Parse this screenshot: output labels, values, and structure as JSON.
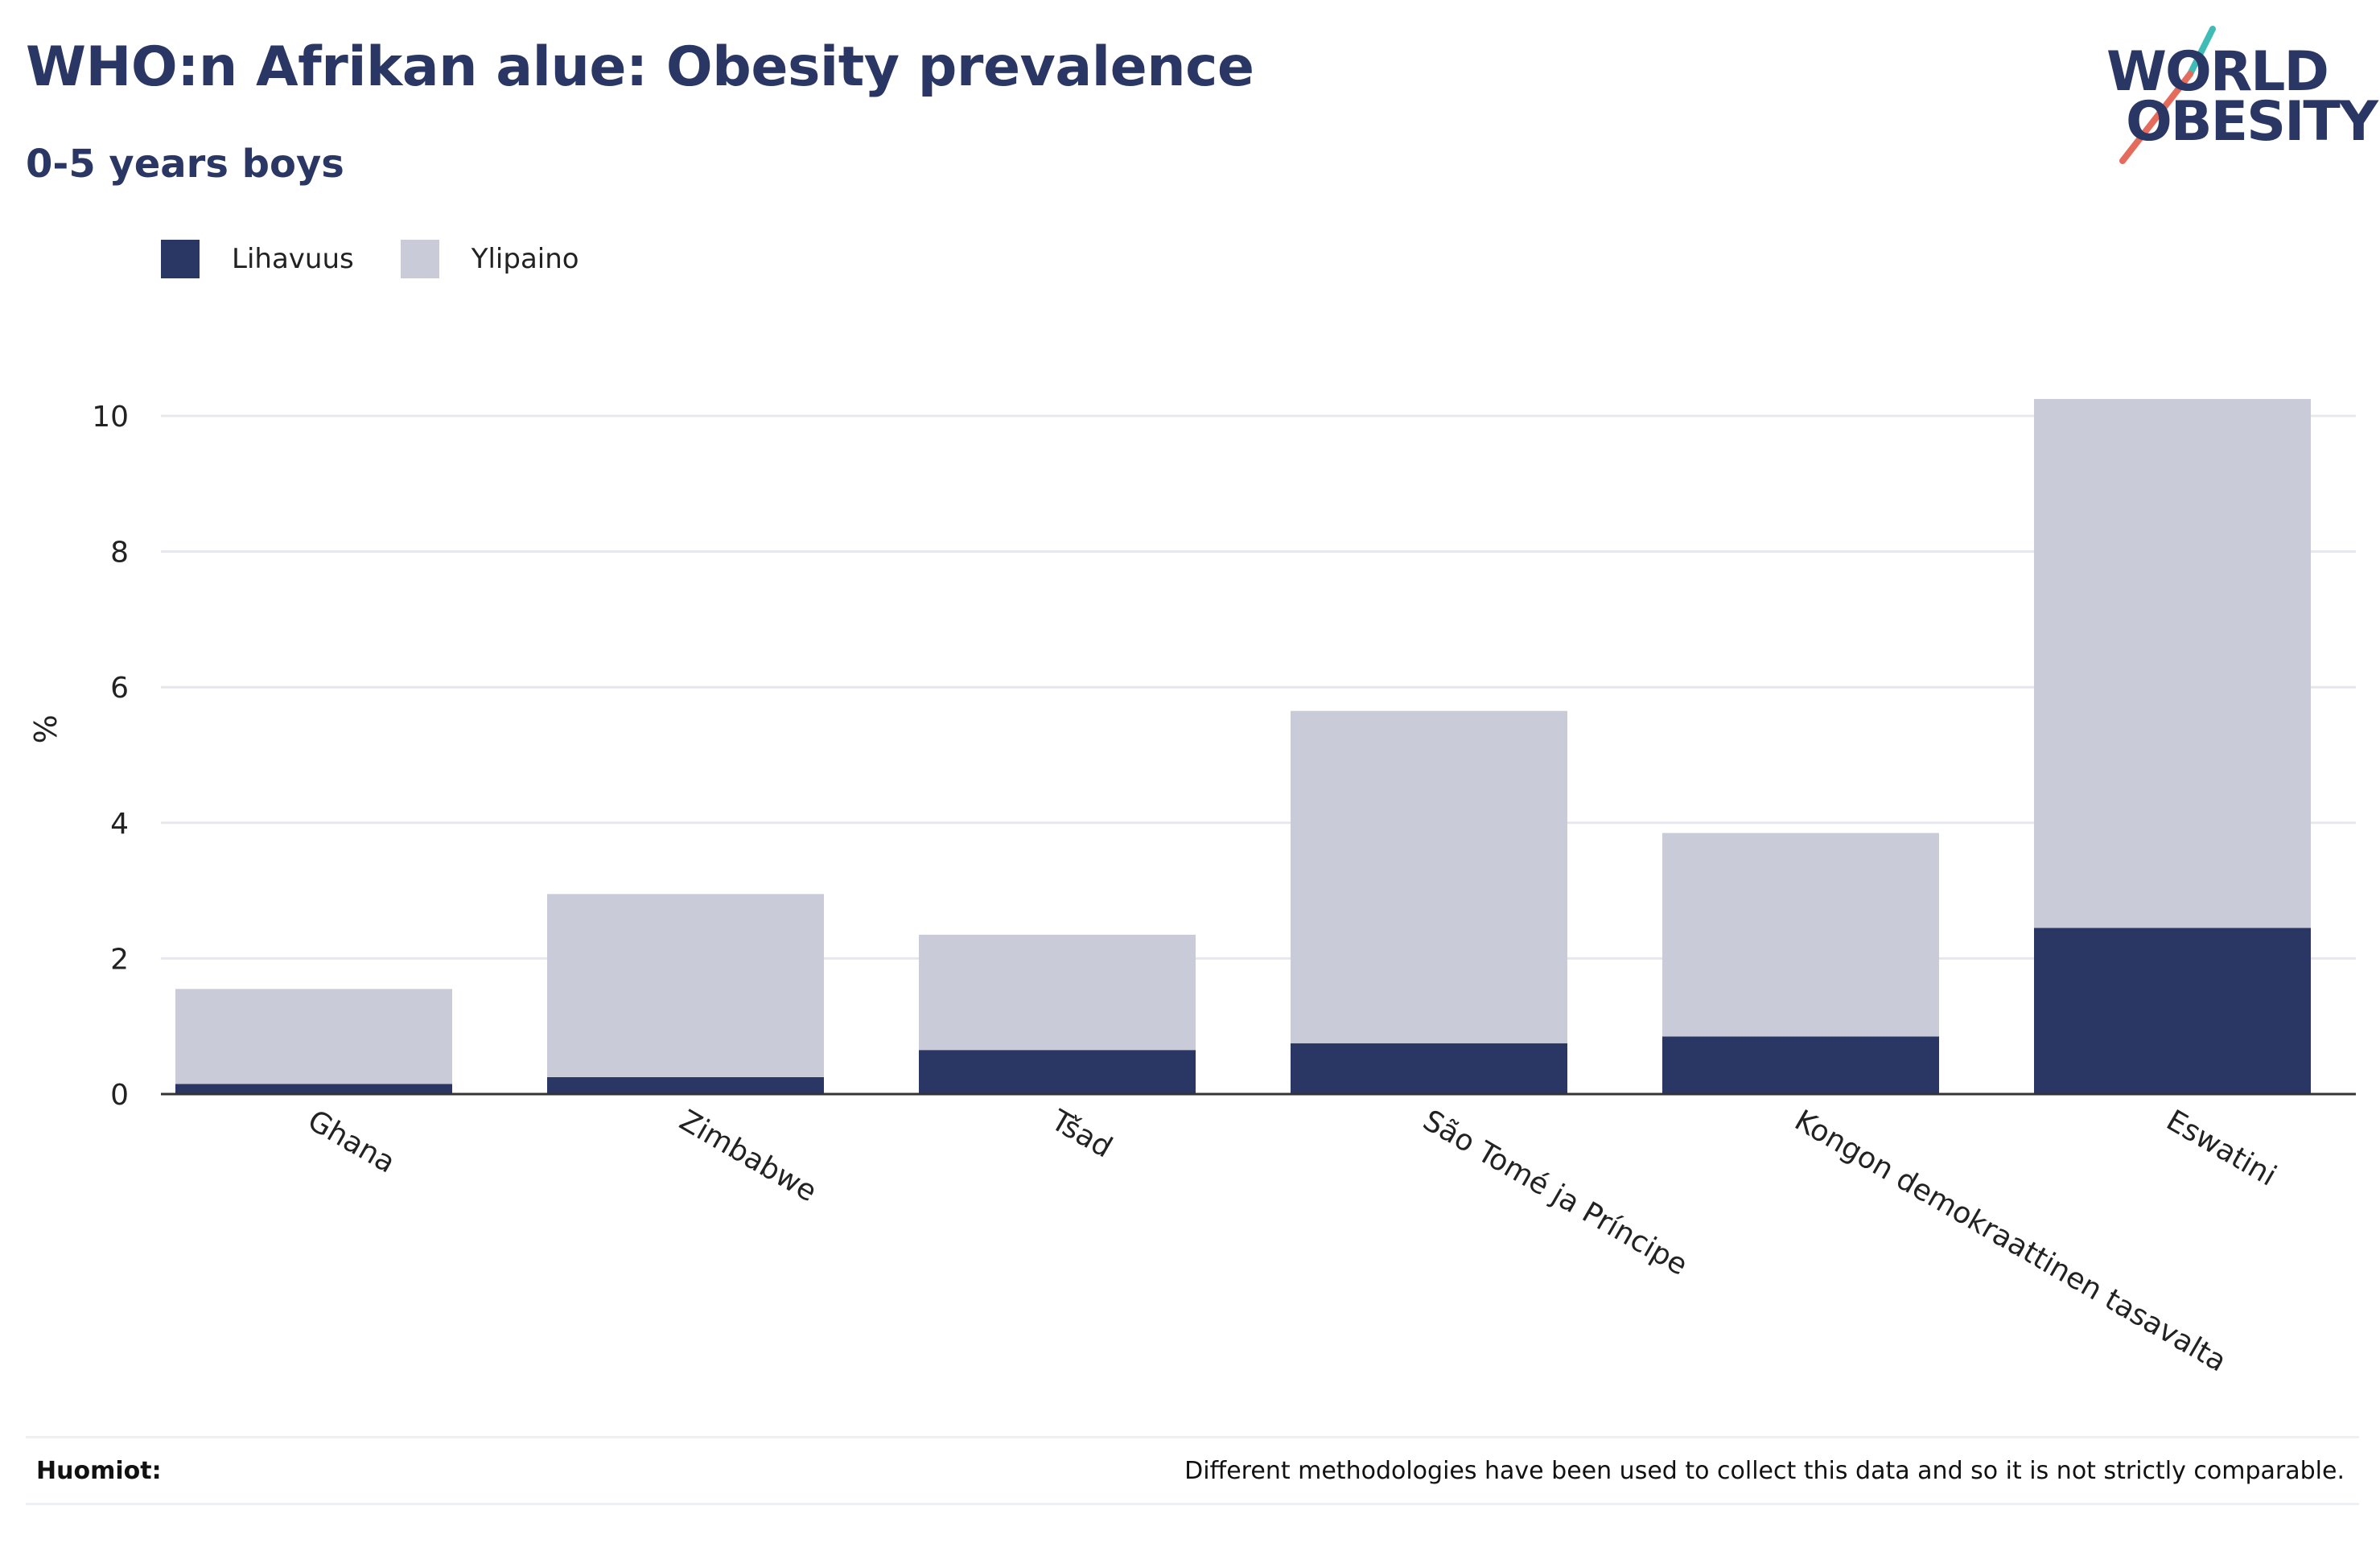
{
  "header": {
    "title": "WHO:n Afrikan alue: Obesity prevalence",
    "subtitle": "0-5 years boys"
  },
  "logo": {
    "line1": "WORLD",
    "line2": "OBESITY",
    "colors": {
      "text": "#2a3764",
      "slash_top": "#3fbcb6",
      "slash_bottom": "#e56b5d"
    }
  },
  "legend": [
    {
      "label": "Lihavuus",
      "color": "#2a3764"
    },
    {
      "label": "Ylipaino",
      "color": "#c9ccd8"
    }
  ],
  "chart_data": {
    "type": "bar",
    "stacked": true,
    "categories": [
      "Ghana",
      "Zimbabwe",
      "Tšad",
      "São Tomé ja Príncipe",
      "Kongon demokraattinen tasavalta",
      "Eswatini"
    ],
    "series": [
      {
        "name": "Lihavuus",
        "color": "#2a3764",
        "values": [
          0.15,
          0.25,
          0.65,
          0.75,
          0.85,
          2.45
        ]
      },
      {
        "name": "Ylipaino",
        "color": "#c9ccd8",
        "values": [
          1.4,
          2.7,
          1.7,
          4.9,
          3.0,
          7.8
        ]
      }
    ],
    "ylabel": "%",
    "xlabel": "",
    "ylim": [
      0,
      11
    ],
    "yticks": [
      0,
      2,
      4,
      6,
      8,
      10
    ],
    "grid": true,
    "legend_position": "top-left"
  },
  "footer": {
    "notes_label": "Huomiot:",
    "notes_text": "Different methodologies have been used to collect this data and so it is not strictly comparable."
  }
}
